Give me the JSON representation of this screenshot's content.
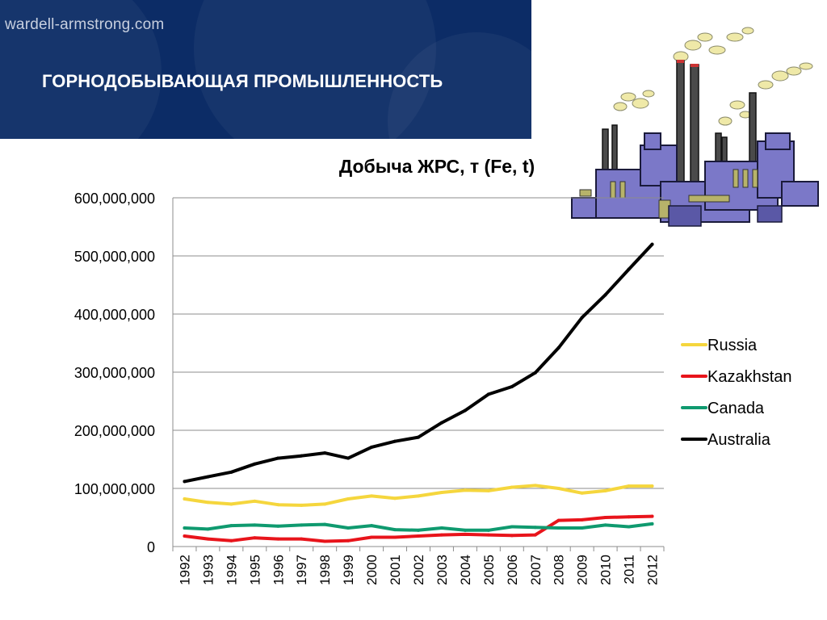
{
  "header": {
    "site": "wardell-armstrong.com",
    "title": "ГОРНОДОБЫВАЮЩАЯ ПРОМЫШЛЕННОСТЬ"
  },
  "decoration": {
    "icon": "factory-icon"
  },
  "chart_data": {
    "type": "line",
    "title": "Добыча ЖРС, т (Fe, t)",
    "xlabel": "",
    "ylabel": "",
    "x": [
      "1992",
      "1993",
      "1994",
      "1995",
      "1996",
      "1997",
      "1998",
      "1999",
      "2000",
      "2001",
      "2002",
      "2003",
      "2004",
      "2005",
      "2006",
      "2007",
      "2008",
      "2009",
      "2010",
      "2011",
      "2012"
    ],
    "ylim": [
      0,
      600000000
    ],
    "yticks": [
      0,
      100000000,
      200000000,
      300000000,
      400000000,
      500000000,
      600000000
    ],
    "ytick_labels": [
      "0",
      "100,000,000",
      "200,000,000",
      "300,000,000",
      "400,000,000",
      "500,000,000",
      "600,000,000"
    ],
    "grid": "horizontal",
    "legend": "right",
    "series": [
      {
        "name": "Russia",
        "color": "#f5d63d",
        "values": [
          82000000,
          76000000,
          73000000,
          78000000,
          72000000,
          71000000,
          73000000,
          82000000,
          87000000,
          83000000,
          87000000,
          93000000,
          97000000,
          96000000,
          102000000,
          105000000,
          100000000,
          92000000,
          96000000,
          104000000,
          104000000
        ]
      },
      {
        "name": "Kazakhstan",
        "color": "#e8141b",
        "values": [
          18000000,
          13000000,
          10000000,
          15000000,
          13000000,
          13000000,
          9000000,
          10000000,
          16000000,
          16000000,
          18000000,
          20000000,
          21000000,
          20000000,
          19000000,
          20000000,
          45000000,
          46000000,
          50000000,
          51000000,
          52000000
        ]
      },
      {
        "name": "Canada",
        "color": "#0f9a6f",
        "values": [
          32000000,
          30000000,
          36000000,
          37000000,
          35000000,
          37000000,
          38000000,
          32000000,
          36000000,
          29000000,
          28000000,
          32000000,
          28000000,
          28000000,
          34000000,
          33000000,
          32000000,
          32000000,
          37000000,
          34000000,
          39000000
        ]
      },
      {
        "name": "Australia",
        "color": "#000000",
        "values": [
          112000000,
          120000000,
          128000000,
          142000000,
          152000000,
          156000000,
          161000000,
          152000000,
          171000000,
          181000000,
          188000000,
          213000000,
          234000000,
          262000000,
          275000000,
          299000000,
          342000000,
          394000000,
          433000000,
          477000000,
          520000000
        ]
      }
    ]
  }
}
